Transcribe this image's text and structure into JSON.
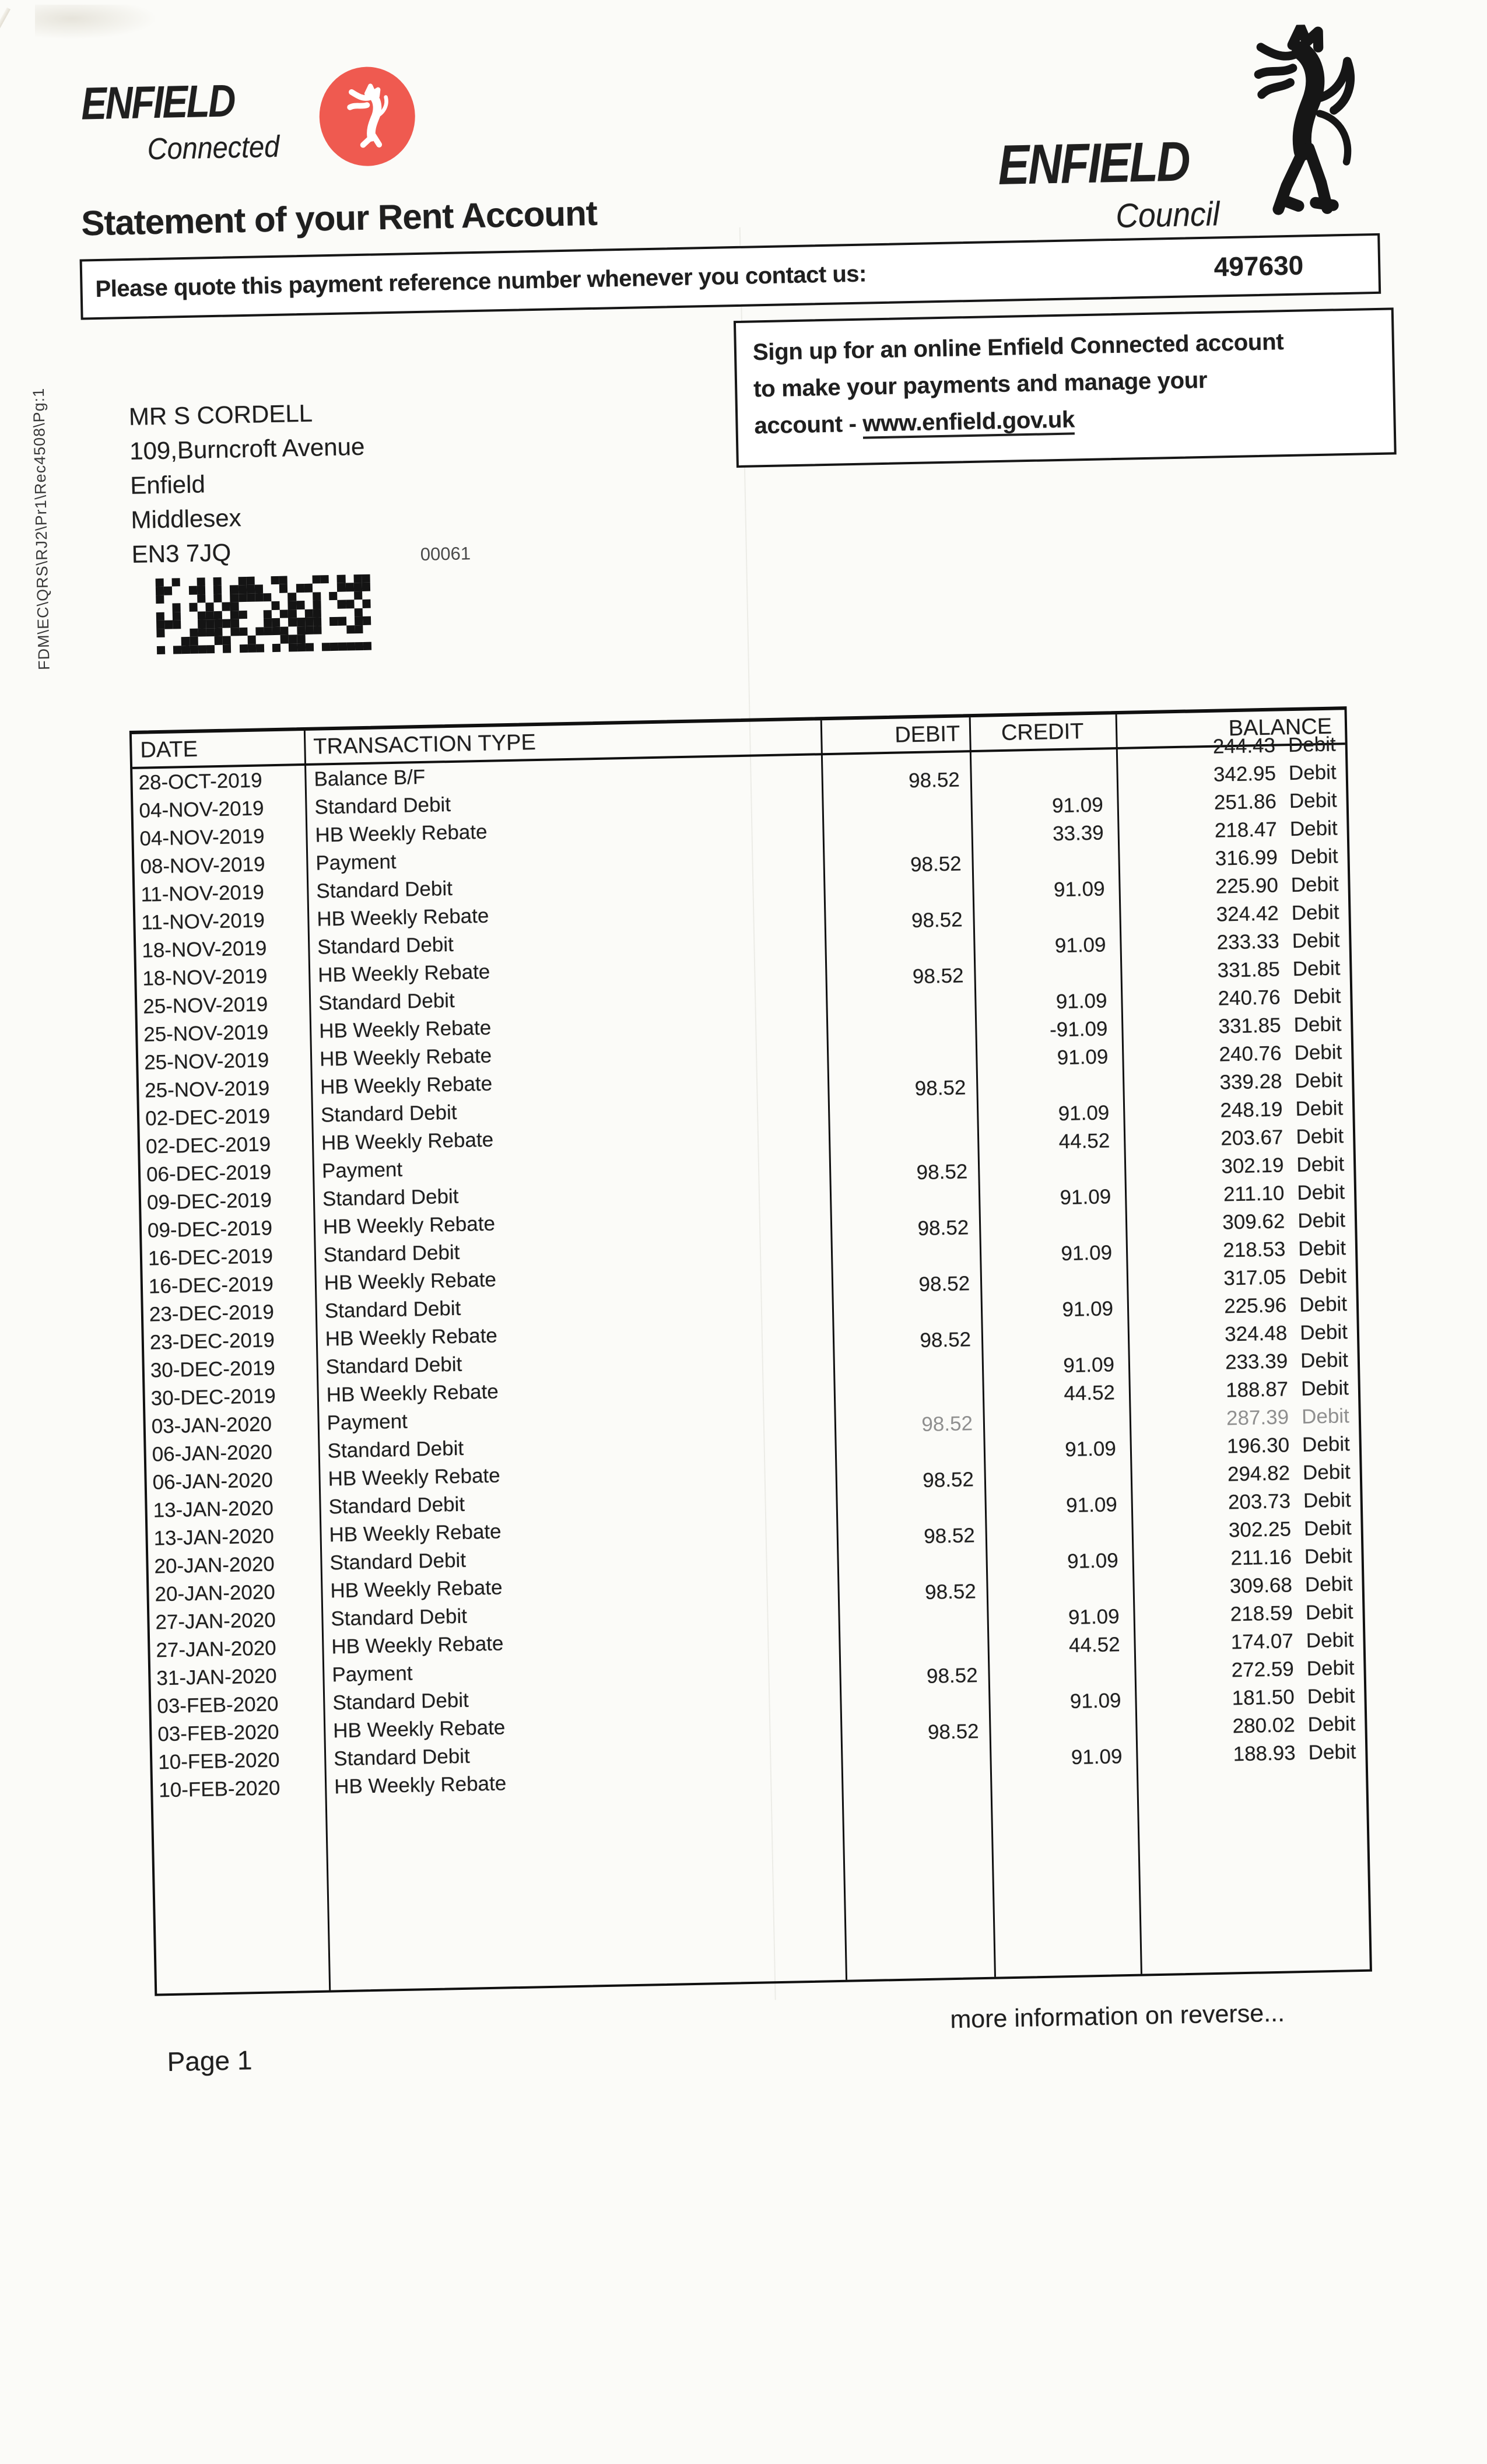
{
  "page": {
    "header_left": {
      "brand": "ENFIELD",
      "sub": "Connected"
    },
    "header_right": {
      "brand": "ENFIELD",
      "sub": "Council"
    },
    "title": "Statement of your Rent Account",
    "reference": {
      "label": "Please quote this payment reference number whenever you contact us:",
      "number": "497630"
    },
    "signup": {
      "line1": "Sign up for an online Enfield Connected account",
      "line2": "to make your payments and manage your",
      "line3_prefix": "account - ",
      "url": "www.enfield.gov.uk"
    },
    "recipient": {
      "name": "MR S CORDELL",
      "address1": "109,Burncroft Avenue",
      "address2": "Enfield",
      "address3": "Middlesex",
      "postcode": "EN3 7JQ",
      "mail_code": "00061"
    },
    "side_code": "FDM\\EC\\QRS\\RJ2\\Pr1\\Rec4508\\Pg:1",
    "footer": {
      "page": "Page 1",
      "note": "more information on reverse..."
    }
  },
  "colors": {
    "logo_red": "#ef5a50",
    "ink": "#1f1f1f"
  },
  "icons": {
    "crest": "enfield-lion-crest",
    "beast": "enfield-council-beast"
  },
  "table": {
    "headers": [
      "DATE",
      "TRANSACTION TYPE",
      "DEBIT",
      "CREDIT",
      "BALANCE"
    ],
    "rows": [
      {
        "date": "28-OCT-2019",
        "type": "Balance B/F",
        "debit": "",
        "credit": "",
        "balance": "244.43",
        "suffix": "Debit"
      },
      {
        "date": "04-NOV-2019",
        "type": "Standard Debit",
        "debit": "98.52",
        "credit": "",
        "balance": "342.95",
        "suffix": "Debit"
      },
      {
        "date": "04-NOV-2019",
        "type": "HB Weekly Rebate",
        "debit": "",
        "credit": "91.09",
        "balance": "251.86",
        "suffix": "Debit"
      },
      {
        "date": "08-NOV-2019",
        "type": "Payment",
        "debit": "",
        "credit": "33.39",
        "balance": "218.47",
        "suffix": "Debit"
      },
      {
        "date": "11-NOV-2019",
        "type": "Standard Debit",
        "debit": "98.52",
        "credit": "",
        "balance": "316.99",
        "suffix": "Debit"
      },
      {
        "date": "11-NOV-2019",
        "type": "HB Weekly Rebate",
        "debit": "",
        "credit": "91.09",
        "balance": "225.90",
        "suffix": "Debit"
      },
      {
        "date": "18-NOV-2019",
        "type": "Standard Debit",
        "debit": "98.52",
        "credit": "",
        "balance": "324.42",
        "suffix": "Debit"
      },
      {
        "date": "18-NOV-2019",
        "type": "HB Weekly Rebate",
        "debit": "",
        "credit": "91.09",
        "balance": "233.33",
        "suffix": "Debit"
      },
      {
        "date": "25-NOV-2019",
        "type": "Standard Debit",
        "debit": "98.52",
        "credit": "",
        "balance": "331.85",
        "suffix": "Debit"
      },
      {
        "date": "25-NOV-2019",
        "type": "HB Weekly Rebate",
        "debit": "",
        "credit": "91.09",
        "balance": "240.76",
        "suffix": "Debit"
      },
      {
        "date": "25-NOV-2019",
        "type": "HB Weekly Rebate",
        "debit": "",
        "credit": "-91.09",
        "balance": "331.85",
        "suffix": "Debit"
      },
      {
        "date": "25-NOV-2019",
        "type": "HB Weekly Rebate",
        "debit": "",
        "credit": "91.09",
        "balance": "240.76",
        "suffix": "Debit"
      },
      {
        "date": "02-DEC-2019",
        "type": "Standard Debit",
        "debit": "98.52",
        "credit": "",
        "balance": "339.28",
        "suffix": "Debit"
      },
      {
        "date": "02-DEC-2019",
        "type": "HB Weekly Rebate",
        "debit": "",
        "credit": "91.09",
        "balance": "248.19",
        "suffix": "Debit"
      },
      {
        "date": "06-DEC-2019",
        "type": "Payment",
        "debit": "",
        "credit": "44.52",
        "balance": "203.67",
        "suffix": "Debit"
      },
      {
        "date": "09-DEC-2019",
        "type": "Standard Debit",
        "debit": "98.52",
        "credit": "",
        "balance": "302.19",
        "suffix": "Debit"
      },
      {
        "date": "09-DEC-2019",
        "type": "HB Weekly Rebate",
        "debit": "",
        "credit": "91.09",
        "balance": "211.10",
        "suffix": "Debit"
      },
      {
        "date": "16-DEC-2019",
        "type": "Standard Debit",
        "debit": "98.52",
        "credit": "",
        "balance": "309.62",
        "suffix": "Debit"
      },
      {
        "date": "16-DEC-2019",
        "type": "HB Weekly Rebate",
        "debit": "",
        "credit": "91.09",
        "balance": "218.53",
        "suffix": "Debit"
      },
      {
        "date": "23-DEC-2019",
        "type": "Standard Debit",
        "debit": "98.52",
        "credit": "",
        "balance": "317.05",
        "suffix": "Debit"
      },
      {
        "date": "23-DEC-2019",
        "type": "HB Weekly Rebate",
        "debit": "",
        "credit": "91.09",
        "balance": "225.96",
        "suffix": "Debit"
      },
      {
        "date": "30-DEC-2019",
        "type": "Standard Debit",
        "debit": "98.52",
        "credit": "",
        "balance": "324.48",
        "suffix": "Debit"
      },
      {
        "date": "30-DEC-2019",
        "type": "HB Weekly Rebate",
        "debit": "",
        "credit": "91.09",
        "balance": "233.39",
        "suffix": "Debit"
      },
      {
        "date": "03-JAN-2020",
        "type": "Payment",
        "debit": "",
        "credit": "44.52",
        "balance": "188.87",
        "suffix": "Debit"
      },
      {
        "date": "06-JAN-2020",
        "type": "Standard Debit",
        "debit": "98.52",
        "credit": "",
        "balance": "287.39",
        "suffix": "Debit",
        "faded": true
      },
      {
        "date": "06-JAN-2020",
        "type": "HB Weekly Rebate",
        "debit": "",
        "credit": "91.09",
        "balance": "196.30",
        "suffix": "Debit"
      },
      {
        "date": "13-JAN-2020",
        "type": "Standard Debit",
        "debit": "98.52",
        "credit": "",
        "balance": "294.82",
        "suffix": "Debit"
      },
      {
        "date": "13-JAN-2020",
        "type": "HB Weekly Rebate",
        "debit": "",
        "credit": "91.09",
        "balance": "203.73",
        "suffix": "Debit"
      },
      {
        "date": "20-JAN-2020",
        "type": "Standard Debit",
        "debit": "98.52",
        "credit": "",
        "balance": "302.25",
        "suffix": "Debit"
      },
      {
        "date": "20-JAN-2020",
        "type": "HB Weekly Rebate",
        "debit": "",
        "credit": "91.09",
        "balance": "211.16",
        "suffix": "Debit"
      },
      {
        "date": "27-JAN-2020",
        "type": "Standard Debit",
        "debit": "98.52",
        "credit": "",
        "balance": "309.68",
        "suffix": "Debit"
      },
      {
        "date": "27-JAN-2020",
        "type": "HB Weekly Rebate",
        "debit": "",
        "credit": "91.09",
        "balance": "218.59",
        "suffix": "Debit"
      },
      {
        "date": "31-JAN-2020",
        "type": "Payment",
        "debit": "",
        "credit": "44.52",
        "balance": "174.07",
        "suffix": "Debit"
      },
      {
        "date": "03-FEB-2020",
        "type": "Standard Debit",
        "debit": "98.52",
        "credit": "",
        "balance": "272.59",
        "suffix": "Debit"
      },
      {
        "date": "03-FEB-2020",
        "type": "HB Weekly Rebate",
        "debit": "",
        "credit": "91.09",
        "balance": "181.50",
        "suffix": "Debit"
      },
      {
        "date": "10-FEB-2020",
        "type": "Standard Debit",
        "debit": "98.52",
        "credit": "",
        "balance": "280.02",
        "suffix": "Debit"
      },
      {
        "date": "10-FEB-2020",
        "type": "HB Weekly Rebate",
        "debit": "",
        "credit": "91.09",
        "balance": "188.93",
        "suffix": "Debit"
      }
    ]
  }
}
